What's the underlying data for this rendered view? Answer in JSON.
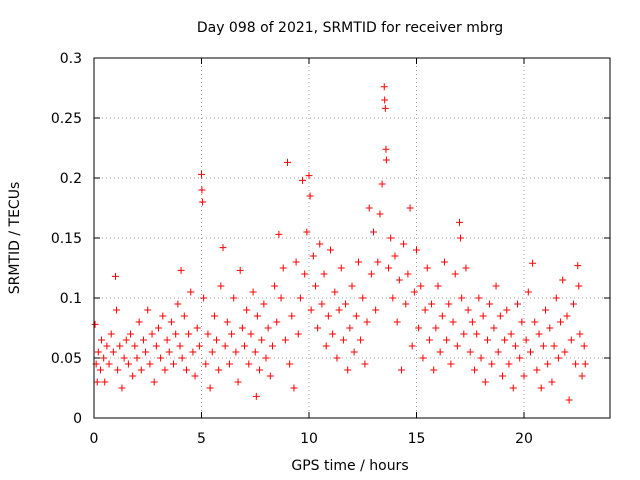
{
  "chart_data": {
    "type": "scatter",
    "title": "Day 098 of 2021, SRMTID for receiver mbrg",
    "xlabel": "GPS time / hours",
    "ylabel": "SRMTID / TECUs",
    "xlim": [
      0,
      24
    ],
    "ylim": [
      0,
      0.3
    ],
    "xticks": [
      0,
      5,
      10,
      15,
      20
    ],
    "xtick_labels": [
      "0",
      "5",
      "10",
      "15",
      "20"
    ],
    "yticks": [
      0,
      0.05,
      0.1,
      0.15,
      0.2,
      0.25,
      0.3
    ],
    "ytick_labels": [
      "0",
      "0.05",
      "0.1",
      "0.15",
      "0.2",
      "0.25",
      "0.3"
    ],
    "grid": true,
    "marker": "+",
    "color": "#ff0000",
    "series": [
      {
        "name": "SRMTID",
        "points": [
          [
            0.05,
            0.078
          ],
          [
            0.1,
            0.045
          ],
          [
            0.15,
            0.03
          ],
          [
            0.2,
            0.055
          ],
          [
            0.3,
            0.04
          ],
          [
            0.35,
            0.065
          ],
          [
            0.45,
            0.05
          ],
          [
            0.5,
            0.03
          ],
          [
            0.6,
            0.06
          ],
          [
            0.7,
            0.045
          ],
          [
            0.8,
            0.07
          ],
          [
            0.9,
            0.055
          ],
          [
            1.0,
            0.118
          ],
          [
            1.05,
            0.09
          ],
          [
            1.1,
            0.04
          ],
          [
            1.2,
            0.06
          ],
          [
            1.3,
            0.025
          ],
          [
            1.4,
            0.05
          ],
          [
            1.5,
            0.065
          ],
          [
            1.6,
            0.045
          ],
          [
            1.7,
            0.07
          ],
          [
            1.8,
            0.035
          ],
          [
            1.9,
            0.06
          ],
          [
            2.0,
            0.05
          ],
          [
            2.1,
            0.08
          ],
          [
            2.2,
            0.04
          ],
          [
            2.3,
            0.065
          ],
          [
            2.4,
            0.055
          ],
          [
            2.5,
            0.09
          ],
          [
            2.6,
            0.045
          ],
          [
            2.7,
            0.07
          ],
          [
            2.8,
            0.03
          ],
          [
            2.9,
            0.06
          ],
          [
            3.0,
            0.075
          ],
          [
            3.1,
            0.05
          ],
          [
            3.2,
            0.085
          ],
          [
            3.3,
            0.04
          ],
          [
            3.4,
            0.065
          ],
          [
            3.5,
            0.055
          ],
          [
            3.6,
            0.08
          ],
          [
            3.7,
            0.045
          ],
          [
            3.8,
            0.07
          ],
          [
            3.9,
            0.095
          ],
          [
            4.0,
            0.06
          ],
          [
            4.05,
            0.123
          ],
          [
            4.1,
            0.05
          ],
          [
            4.2,
            0.085
          ],
          [
            4.3,
            0.04
          ],
          [
            4.4,
            0.07
          ],
          [
            4.5,
            0.105
          ],
          [
            4.6,
            0.055
          ],
          [
            4.7,
            0.035
          ],
          [
            4.8,
            0.075
          ],
          [
            4.9,
            0.06
          ],
          [
            5.0,
            0.203
          ],
          [
            5.02,
            0.19
          ],
          [
            5.05,
            0.18
          ],
          [
            5.1,
            0.1
          ],
          [
            5.2,
            0.045
          ],
          [
            5.3,
            0.07
          ],
          [
            5.4,
            0.025
          ],
          [
            5.5,
            0.055
          ],
          [
            5.6,
            0.085
          ],
          [
            5.7,
            0.065
          ],
          [
            5.8,
            0.04
          ],
          [
            5.9,
            0.11
          ],
          [
            6.0,
            0.142
          ],
          [
            6.1,
            0.06
          ],
          [
            6.2,
            0.08
          ],
          [
            6.3,
            0.045
          ],
          [
            6.4,
            0.07
          ],
          [
            6.5,
            0.1
          ],
          [
            6.6,
            0.055
          ],
          [
            6.7,
            0.03
          ],
          [
            6.8,
            0.123
          ],
          [
            6.9,
            0.075
          ],
          [
            7.0,
            0.06
          ],
          [
            7.1,
            0.09
          ],
          [
            7.2,
            0.045
          ],
          [
            7.3,
            0.07
          ],
          [
            7.4,
            0.105
          ],
          [
            7.5,
            0.055
          ],
          [
            7.55,
            0.018
          ],
          [
            7.6,
            0.085
          ],
          [
            7.7,
            0.04
          ],
          [
            7.8,
            0.065
          ],
          [
            7.9,
            0.095
          ],
          [
            8.0,
            0.05
          ],
          [
            8.1,
            0.075
          ],
          [
            8.2,
            0.035
          ],
          [
            8.3,
            0.06
          ],
          [
            8.4,
            0.11
          ],
          [
            8.5,
            0.08
          ],
          [
            8.6,
            0.153
          ],
          [
            8.7,
            0.1
          ],
          [
            8.8,
            0.125
          ],
          [
            8.9,
            0.065
          ],
          [
            9.0,
            0.213
          ],
          [
            9.1,
            0.045
          ],
          [
            9.2,
            0.085
          ],
          [
            9.3,
            0.025
          ],
          [
            9.4,
            0.13
          ],
          [
            9.5,
            0.07
          ],
          [
            9.6,
            0.1
          ],
          [
            9.7,
            0.198
          ],
          [
            9.8,
            0.12
          ],
          [
            9.9,
            0.155
          ],
          [
            10.0,
            0.202
          ],
          [
            10.05,
            0.185
          ],
          [
            10.1,
            0.09
          ],
          [
            10.2,
            0.135
          ],
          [
            10.3,
            0.11
          ],
          [
            10.4,
            0.075
          ],
          [
            10.5,
            0.145
          ],
          [
            10.6,
            0.095
          ],
          [
            10.7,
            0.12
          ],
          [
            10.8,
            0.06
          ],
          [
            10.9,
            0.085
          ],
          [
            11.0,
            0.14
          ],
          [
            11.1,
            0.07
          ],
          [
            11.2,
            0.105
          ],
          [
            11.3,
            0.05
          ],
          [
            11.4,
            0.09
          ],
          [
            11.5,
            0.125
          ],
          [
            11.6,
            0.065
          ],
          [
            11.7,
            0.095
          ],
          [
            11.8,
            0.04
          ],
          [
            11.9,
            0.075
          ],
          [
            12.0,
            0.11
          ],
          [
            12.1,
            0.055
          ],
          [
            12.2,
            0.085
          ],
          [
            12.3,
            0.13
          ],
          [
            12.4,
            0.065
          ],
          [
            12.5,
            0.1
          ],
          [
            12.6,
            0.045
          ],
          [
            12.7,
            0.08
          ],
          [
            12.8,
            0.175
          ],
          [
            12.9,
            0.12
          ],
          [
            13.0,
            0.155
          ],
          [
            13.1,
            0.09
          ],
          [
            13.2,
            0.13
          ],
          [
            13.3,
            0.17
          ],
          [
            13.4,
            0.195
          ],
          [
            13.5,
            0.276
          ],
          [
            13.52,
            0.265
          ],
          [
            13.55,
            0.258
          ],
          [
            13.58,
            0.224
          ],
          [
            13.6,
            0.215
          ],
          [
            13.7,
            0.125
          ],
          [
            13.8,
            0.15
          ],
          [
            13.9,
            0.1
          ],
          [
            14.0,
            0.135
          ],
          [
            14.1,
            0.08
          ],
          [
            14.2,
            0.115
          ],
          [
            14.3,
            0.04
          ],
          [
            14.4,
            0.145
          ],
          [
            14.5,
            0.095
          ],
          [
            14.6,
            0.12
          ],
          [
            14.7,
            0.175
          ],
          [
            14.8,
            0.06
          ],
          [
            14.9,
            0.105
          ],
          [
            15.0,
            0.14
          ],
          [
            15.1,
            0.075
          ],
          [
            15.2,
            0.11
          ],
          [
            15.3,
            0.05
          ],
          [
            15.4,
            0.09
          ],
          [
            15.5,
            0.125
          ],
          [
            15.6,
            0.065
          ],
          [
            15.7,
            0.095
          ],
          [
            15.8,
            0.04
          ],
          [
            15.9,
            0.075
          ],
          [
            16.0,
            0.11
          ],
          [
            16.1,
            0.055
          ],
          [
            16.2,
            0.085
          ],
          [
            16.3,
            0.13
          ],
          [
            16.4,
            0.065
          ],
          [
            16.5,
            0.095
          ],
          [
            16.6,
            0.045
          ],
          [
            16.7,
            0.08
          ],
          [
            16.8,
            0.12
          ],
          [
            16.9,
            0.06
          ],
          [
            17.0,
            0.163
          ],
          [
            17.05,
            0.15
          ],
          [
            17.1,
            0.1
          ],
          [
            17.2,
            0.07
          ],
          [
            17.3,
            0.125
          ],
          [
            17.4,
            0.09
          ],
          [
            17.5,
            0.055
          ],
          [
            17.6,
            0.08
          ],
          [
            17.7,
            0.04
          ],
          [
            17.8,
            0.07
          ],
          [
            17.9,
            0.1
          ],
          [
            18.0,
            0.05
          ],
          [
            18.1,
            0.085
          ],
          [
            18.2,
            0.03
          ],
          [
            18.3,
            0.065
          ],
          [
            18.4,
            0.095
          ],
          [
            18.5,
            0.045
          ],
          [
            18.6,
            0.075
          ],
          [
            18.7,
            0.11
          ],
          [
            18.8,
            0.055
          ],
          [
            18.9,
            0.085
          ],
          [
            19.0,
            0.035
          ],
          [
            19.1,
            0.065
          ],
          [
            19.2,
            0.09
          ],
          [
            19.3,
            0.045
          ],
          [
            19.4,
            0.07
          ],
          [
            19.5,
            0.025
          ],
          [
            19.6,
            0.06
          ],
          [
            19.7,
            0.095
          ],
          [
            19.8,
            0.05
          ],
          [
            19.9,
            0.08
          ],
          [
            20.0,
            0.035
          ],
          [
            20.1,
            0.065
          ],
          [
            20.2,
            0.105
          ],
          [
            20.3,
            0.055
          ],
          [
            20.4,
            0.129
          ],
          [
            20.5,
            0.08
          ],
          [
            20.6,
            0.04
          ],
          [
            20.7,
            0.07
          ],
          [
            20.8,
            0.025
          ],
          [
            20.9,
            0.06
          ],
          [
            21.0,
            0.09
          ],
          [
            21.1,
            0.045
          ],
          [
            21.2,
            0.075
          ],
          [
            21.3,
            0.03
          ],
          [
            21.4,
            0.06
          ],
          [
            21.5,
            0.1
          ],
          [
            21.6,
            0.05
          ],
          [
            21.7,
            0.08
          ],
          [
            21.8,
            0.115
          ],
          [
            21.9,
            0.055
          ],
          [
            22.0,
            0.085
          ],
          [
            22.1,
            0.015
          ],
          [
            22.2,
            0.065
          ],
          [
            22.3,
            0.095
          ],
          [
            22.4,
            0.045
          ],
          [
            22.5,
            0.127
          ],
          [
            22.55,
            0.11
          ],
          [
            22.6,
            0.07
          ],
          [
            22.7,
            0.035
          ],
          [
            22.8,
            0.06
          ],
          [
            22.85,
            0.045
          ]
        ]
      }
    ]
  }
}
